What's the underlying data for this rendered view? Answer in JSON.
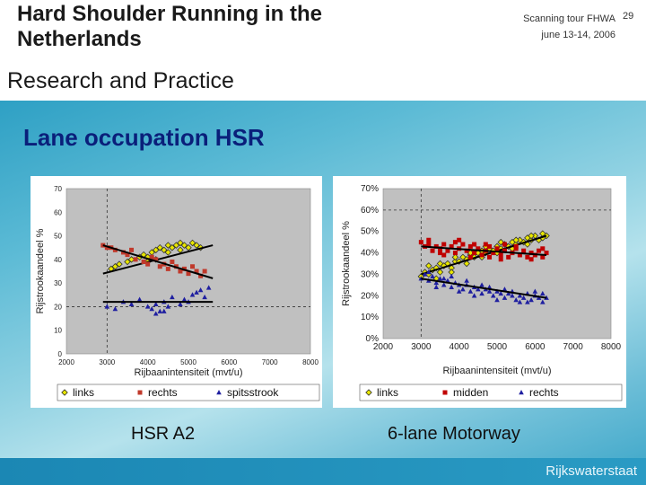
{
  "header": {
    "title_line1": "Hard Shoulder Running in the",
    "title_line2": "Netherlands",
    "tour_line1": "Scanning tour FHWA",
    "tour_line2": "june 13-14, 2006",
    "page_number": "29",
    "subtitle": "Research and Practice"
  },
  "section_title": "Lane occupation HSR",
  "footer": {
    "brand": "Rijkswaterstaat"
  },
  "colors": {
    "links": "#e8e600",
    "middle": "#c00000",
    "rechts_left": "#c0392b",
    "spits": "#1f1fa0",
    "trend": "#000000",
    "plot_bg": "#c0c0c0"
  },
  "chart_data": [
    {
      "type": "scatter",
      "caption": "HSR A2",
      "ylabel": "Rijstrookaandeel %",
      "xlabel": "Rijbaanintensiteit (mvt/u)",
      "xlim": [
        2000,
        8000
      ],
      "ylim": [
        0,
        70
      ],
      "x_ticks": [
        "2000",
        "3000",
        "4000",
        "5000",
        "6000",
        "7000",
        "8000"
      ],
      "y_ticks": [
        "0",
        "10",
        "20",
        "30",
        "40",
        "50",
        "60",
        "70"
      ],
      "reference_y": 20,
      "reference_x": 3000,
      "series": [
        {
          "name": "links",
          "marker": "diamond",
          "points": [
            [
              3100,
              36
            ],
            [
              3200,
              37
            ],
            [
              3300,
              38
            ],
            [
              3500,
              39
            ],
            [
              3600,
              40
            ],
            [
              3800,
              41
            ],
            [
              3900,
              42
            ],
            [
              4000,
              41
            ],
            [
              4100,
              43
            ],
            [
              4200,
              44
            ],
            [
              4300,
              45
            ],
            [
              4400,
              44
            ],
            [
              4500,
              46
            ],
            [
              4600,
              45
            ],
            [
              4700,
              46
            ],
            [
              4800,
              47
            ],
            [
              4900,
              46
            ],
            [
              5000,
              45
            ],
            [
              5100,
              47
            ],
            [
              5200,
              46
            ],
            [
              5300,
              45
            ],
            [
              4000,
              39
            ],
            [
              4200,
              40
            ],
            [
              4500,
              43
            ],
            [
              4800,
              44
            ]
          ],
          "trend": [
            [
              2900,
              34
            ],
            [
              5600,
              46
            ]
          ]
        },
        {
          "name": "rechts",
          "marker": "square",
          "points": [
            [
              2900,
              46
            ],
            [
              3000,
              45
            ],
            [
              3100,
              45
            ],
            [
              3200,
              44
            ],
            [
              3400,
              43
            ],
            [
              3500,
              42
            ],
            [
              3700,
              40
            ],
            [
              3900,
              39
            ],
            [
              4000,
              38
            ],
            [
              4200,
              40
            ],
            [
              4300,
              37
            ],
            [
              4400,
              38
            ],
            [
              4500,
              36
            ],
            [
              4700,
              37
            ],
            [
              4800,
              35
            ],
            [
              4900,
              36
            ],
            [
              5000,
              34
            ],
            [
              5200,
              35
            ],
            [
              5300,
              33
            ],
            [
              5400,
              35
            ],
            [
              3600,
              44
            ],
            [
              4100,
              41
            ],
            [
              4600,
              39
            ],
            [
              5100,
              37
            ]
          ],
          "trend": [
            [
              2900,
              46
            ],
            [
              5600,
              32
            ]
          ]
        },
        {
          "name": "spitsstrook",
          "marker": "triangle",
          "points": [
            [
              3000,
              20
            ],
            [
              3200,
              19
            ],
            [
              3400,
              22
            ],
            [
              3600,
              21
            ],
            [
              3800,
              23
            ],
            [
              4000,
              20
            ],
            [
              4100,
              19
            ],
            [
              4200,
              21
            ],
            [
              4300,
              18
            ],
            [
              4400,
              22
            ],
            [
              4500,
              20
            ],
            [
              4600,
              24
            ],
            [
              4800,
              21
            ],
            [
              4900,
              23
            ],
            [
              5000,
              22
            ],
            [
              5100,
              25
            ],
            [
              5200,
              26
            ],
            [
              5300,
              27
            ],
            [
              5400,
              24
            ],
            [
              4200,
              17
            ],
            [
              4400,
              18
            ],
            [
              5500,
              28
            ]
          ],
          "trend": [
            [
              2900,
              22
            ],
            [
              5600,
              22
            ]
          ]
        }
      ]
    },
    {
      "type": "scatter",
      "caption": "6-lane Motorway",
      "ylabel": "Rijstrookaandeel %",
      "xlabel": "Rijbaanintensiteit (mvt/u)",
      "xlim": [
        2000,
        8000
      ],
      "ylim": [
        0,
        70
      ],
      "x_ticks": [
        "2000",
        "3000",
        "4000",
        "5000",
        "6000",
        "7000",
        "8000"
      ],
      "y_ticks": [
        "0%",
        "10%",
        "20%",
        "30%",
        "40%",
        "50%",
        "60%",
        "70%"
      ],
      "reference_y": 60,
      "reference_x": 3000,
      "series": [
        {
          "name": "links",
          "marker": "diamond",
          "points": [
            [
              3000,
              29
            ],
            [
              3100,
              31
            ],
            [
              3200,
              30
            ],
            [
              3300,
              32
            ],
            [
              3400,
              33
            ],
            [
              3500,
              31
            ],
            [
              3600,
              34
            ],
            [
              3700,
              35
            ],
            [
              3800,
              33
            ],
            [
              3900,
              36
            ],
            [
              4000,
              36
            ],
            [
              4100,
              38
            ],
            [
              4200,
              37
            ],
            [
              4300,
              39
            ],
            [
              4400,
              38
            ],
            [
              4500,
              40
            ],
            [
              4600,
              41
            ],
            [
              4700,
              40
            ],
            [
              4800,
              42
            ],
            [
              4900,
              41
            ],
            [
              5000,
              43
            ],
            [
              5100,
              42
            ],
            [
              5200,
              44
            ],
            [
              5300,
              43
            ],
            [
              5400,
              45
            ],
            [
              5500,
              44
            ],
            [
              5600,
              46
            ],
            [
              5700,
              45
            ],
            [
              5800,
              47
            ],
            [
              5900,
              46
            ],
            [
              6000,
              48
            ],
            [
              6100,
              46
            ],
            [
              6200,
              47
            ],
            [
              6300,
              48
            ],
            [
              3200,
              34
            ],
            [
              3500,
              35
            ],
            [
              3900,
              38
            ],
            [
              4300,
              40
            ],
            [
              4700,
              43
            ],
            [
              5100,
              45
            ],
            [
              5500,
              46
            ],
            [
              5900,
              48
            ],
            [
              6200,
              49
            ],
            [
              3400,
              28
            ],
            [
              3800,
              31
            ],
            [
              4200,
              35
            ],
            [
              4600,
              38
            ],
            [
              5000,
              40
            ],
            [
              5400,
              42
            ],
            [
              5800,
              44
            ]
          ],
          "trend": [
            [
              3000,
              30
            ],
            [
              6300,
              48
            ]
          ]
        },
        {
          "name": "midden",
          "marker": "square",
          "points": [
            [
              3000,
              45
            ],
            [
              3100,
              43
            ],
            [
              3200,
              44
            ],
            [
              3300,
              41
            ],
            [
              3400,
              43
            ],
            [
              3500,
              42
            ],
            [
              3600,
              44
            ],
            [
              3700,
              41
            ],
            [
              3800,
              43
            ],
            [
              3900,
              40
            ],
            [
              4000,
              42
            ],
            [
              4100,
              44
            ],
            [
              4200,
              41
            ],
            [
              4300,
              43
            ],
            [
              4400,
              40
            ],
            [
              4500,
              42
            ],
            [
              4600,
              39
            ],
            [
              4700,
              41
            ],
            [
              4800,
              43
            ],
            [
              4900,
              40
            ],
            [
              5000,
              42
            ],
            [
              5100,
              39
            ],
            [
              5200,
              41
            ],
            [
              5300,
              38
            ],
            [
              5400,
              40
            ],
            [
              5500,
              42
            ],
            [
              5600,
              39
            ],
            [
              5700,
              41
            ],
            [
              5800,
              38
            ],
            [
              5900,
              40
            ],
            [
              6000,
              39
            ],
            [
              6100,
              41
            ],
            [
              6200,
              38
            ],
            [
              6300,
              40
            ],
            [
              3200,
              46
            ],
            [
              3500,
              40
            ],
            [
              3900,
              45
            ],
            [
              4300,
              38
            ],
            [
              4700,
              44
            ],
            [
              5100,
              37
            ],
            [
              5500,
              43
            ],
            [
              5900,
              37
            ],
            [
              6200,
              42
            ],
            [
              3600,
              39
            ],
            [
              4000,
              46
            ],
            [
              4400,
              44
            ],
            [
              4800,
              38
            ],
            [
              5200,
              44
            ]
          ],
          "trend": [
            [
              3000,
              43
            ],
            [
              6300,
              39
            ]
          ]
        },
        {
          "name": "rechts",
          "marker": "triangle",
          "points": [
            [
              3000,
              28
            ],
            [
              3100,
              30
            ],
            [
              3200,
              27
            ],
            [
              3300,
              29
            ],
            [
              3400,
              26
            ],
            [
              3500,
              28
            ],
            [
              3600,
              25
            ],
            [
              3700,
              27
            ],
            [
              3800,
              24
            ],
            [
              3900,
              26
            ],
            [
              4000,
              25
            ],
            [
              4100,
              23
            ],
            [
              4200,
              25
            ],
            [
              4300,
              22
            ],
            [
              4400,
              24
            ],
            [
              4500,
              23
            ],
            [
              4600,
              21
            ],
            [
              4700,
              23
            ],
            [
              4800,
              22
            ],
            [
              4900,
              20
            ],
            [
              5000,
              22
            ],
            [
              5100,
              21
            ],
            [
              5200,
              19
            ],
            [
              5300,
              21
            ],
            [
              5400,
              20
            ],
            [
              5500,
              18
            ],
            [
              5600,
              20
            ],
            [
              5700,
              19
            ],
            [
              5800,
              21
            ],
            [
              5900,
              18
            ],
            [
              6000,
              20
            ],
            [
              6100,
              19
            ],
            [
              6200,
              17
            ],
            [
              6300,
              19
            ],
            [
              3200,
              31
            ],
            [
              3600,
              28
            ],
            [
              4000,
              22
            ],
            [
              4400,
              20
            ],
            [
              4800,
              24
            ],
            [
              5200,
              23
            ],
            [
              5600,
              17
            ],
            [
              6000,
              22
            ],
            [
              3400,
              24
            ],
            [
              3800,
              29
            ],
            [
              4200,
              27
            ],
            [
              4600,
              25
            ],
            [
              5000,
              18
            ],
            [
              5400,
              22
            ],
            [
              5800,
              17
            ],
            [
              6200,
              21
            ]
          ],
          "trend": [
            [
              3000,
              28
            ],
            [
              6300,
              19
            ]
          ]
        }
      ]
    }
  ]
}
